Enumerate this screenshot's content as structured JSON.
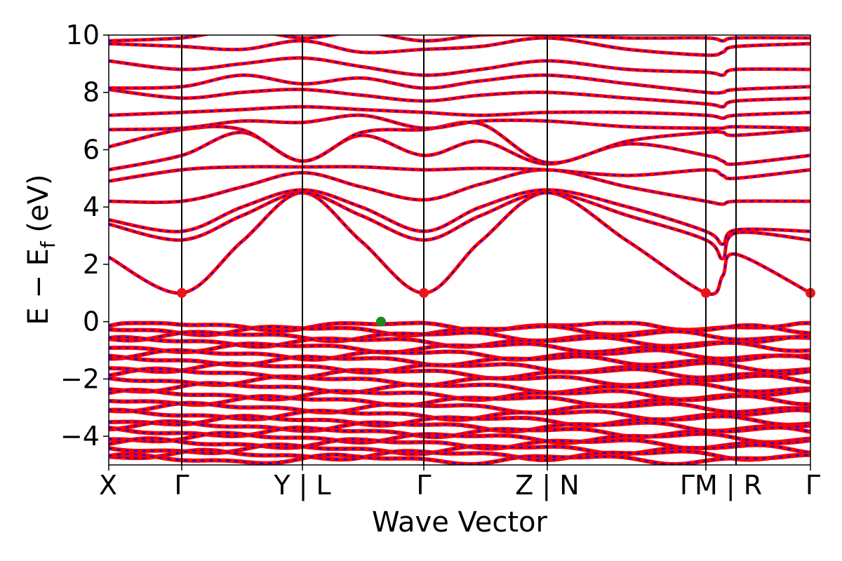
{
  "chart_data": {
    "type": "line",
    "title": "",
    "xlabel": "Wave Vector",
    "ylabel": {
      "main": "E − E",
      "sub": "f",
      "unit": " (eV)"
    },
    "ylim": [
      -5,
      10
    ],
    "y_ticks": [
      -4,
      -2,
      0,
      2,
      4,
      6,
      8,
      10
    ],
    "y_tick_labels": [
      "−4",
      "−2",
      "0",
      "2",
      "4",
      "6",
      "8",
      "10"
    ],
    "xlim": [
      0,
      1
    ],
    "k_points": [
      {
        "label": "X",
        "x": 0.0
      },
      {
        "label": "Γ",
        "x": 0.104
      },
      {
        "label": "Y | L",
        "x": 0.276
      },
      {
        "label": "Γ",
        "x": 0.449
      },
      {
        "label": "Z | N",
        "x": 0.625
      },
      {
        "label": "ΓM | R",
        "x": 0.851,
        "x2": 0.894
      },
      {
        "label": "Γ",
        "x": 1.0
      }
    ],
    "vlines": [
      0.104,
      0.276,
      0.449,
      0.625,
      0.851,
      0.894
    ],
    "grid": false,
    "legend": "none",
    "colors": {
      "band": "#ff0000",
      "band_overlay": "#0000ff",
      "cbm_marker": "#e8151b",
      "vbm_marker": "#1a8a1a",
      "kline": "#000000"
    },
    "cbm_points": [
      {
        "x": 0.104,
        "y": 1.0
      },
      {
        "x": 0.449,
        "y": 1.0
      },
      {
        "x": 0.851,
        "y": 1.0
      },
      {
        "x": 1.0,
        "y": 1.0
      }
    ],
    "vbm_points": [
      {
        "x": 0.388,
        "y": 0.0
      }
    ],
    "conduction_bands": [
      {
        "name": "",
        "x": [
          0,
          0.104,
          0.19,
          0.276,
          0.36,
          0.449,
          0.53,
          0.625,
          0.74,
          0.851,
          0.875,
          0.894,
          1.0
        ],
        "y": [
          2.25,
          1.0,
          2.8,
          4.5,
          2.8,
          1.0,
          2.8,
          4.5,
          2.8,
          1.0,
          1.6,
          2.35,
          1.0
        ]
      },
      {
        "name": "",
        "x": [
          0,
          0.104,
          0.19,
          0.276,
          0.36,
          0.449,
          0.53,
          0.625,
          0.74,
          0.851,
          0.875,
          0.894,
          1.0
        ],
        "y": [
          3.4,
          2.85,
          3.7,
          4.5,
          3.7,
          2.85,
          3.7,
          4.5,
          3.7,
          2.85,
          2.2,
          3.1,
          2.85
        ]
      },
      {
        "name": "",
        "x": [
          0,
          0.104,
          0.19,
          0.276,
          0.36,
          0.449,
          0.53,
          0.625,
          0.74,
          0.851,
          0.875,
          0.894,
          1.0
        ],
        "y": [
          3.55,
          3.15,
          4.0,
          4.6,
          4.0,
          3.15,
          4.0,
          4.6,
          4.0,
          3.15,
          2.7,
          3.2,
          3.15
        ]
      },
      {
        "name": "",
        "x": [
          0,
          0.104,
          0.19,
          0.276,
          0.36,
          0.449,
          0.53,
          0.625,
          0.74,
          0.851,
          0.875,
          0.894,
          1.0
        ],
        "y": [
          4.2,
          4.2,
          4.7,
          5.2,
          4.7,
          4.25,
          4.8,
          5.3,
          4.7,
          4.2,
          4.1,
          4.2,
          4.2
        ]
      },
      {
        "name": "",
        "x": [
          0,
          0.104,
          0.19,
          0.276,
          0.36,
          0.449,
          0.53,
          0.625,
          0.74,
          0.851,
          0.875,
          0.894,
          1.0
        ],
        "y": [
          4.9,
          5.3,
          5.4,
          5.4,
          5.4,
          5.3,
          5.35,
          5.3,
          5.1,
          5.3,
          5.1,
          5.0,
          5.3
        ]
      },
      {
        "name": "",
        "x": [
          0,
          0.104,
          0.19,
          0.276,
          0.36,
          0.449,
          0.53,
          0.625,
          0.74,
          0.851,
          0.875,
          0.894,
          1.0
        ],
        "y": [
          5.3,
          5.8,
          6.6,
          5.6,
          6.5,
          5.8,
          6.3,
          5.5,
          6.2,
          5.8,
          5.6,
          5.5,
          5.8
        ]
      },
      {
        "name": "",
        "x": [
          0,
          0.104,
          0.19,
          0.276,
          0.36,
          0.449,
          0.53,
          0.625,
          0.74,
          0.851,
          0.875,
          0.894,
          1.0
        ],
        "y": [
          6.1,
          6.7,
          6.7,
          5.6,
          6.6,
          6.7,
          6.9,
          5.55,
          6.3,
          6.6,
          6.6,
          6.5,
          6.7
        ]
      },
      {
        "name": "",
        "x": [
          0,
          0.104,
          0.19,
          0.276,
          0.36,
          0.449,
          0.53,
          0.625,
          0.74,
          0.851,
          0.875,
          0.894,
          1.0
        ],
        "y": [
          6.7,
          6.75,
          7.0,
          6.95,
          7.2,
          6.75,
          7.0,
          7.0,
          6.8,
          6.75,
          6.75,
          6.8,
          6.75
        ]
      },
      {
        "name": "",
        "x": [
          0,
          0.104,
          0.19,
          0.276,
          0.36,
          0.449,
          0.53,
          0.625,
          0.74,
          0.851,
          0.875,
          0.894,
          1.0
        ],
        "y": [
          7.2,
          7.3,
          7.4,
          7.5,
          7.4,
          7.3,
          7.2,
          7.3,
          7.3,
          7.2,
          7.1,
          7.2,
          7.3
        ]
      },
      {
        "name": "",
        "x": [
          0,
          0.104,
          0.19,
          0.276,
          0.36,
          0.449,
          0.53,
          0.625,
          0.74,
          0.851,
          0.875,
          0.894,
          1.0
        ],
        "y": [
          8.1,
          7.8,
          8.0,
          8.1,
          7.9,
          7.7,
          7.9,
          8.0,
          7.8,
          7.6,
          7.5,
          7.7,
          7.8
        ]
      },
      {
        "name": "",
        "x": [
          0,
          0.104,
          0.19,
          0.276,
          0.36,
          0.449,
          0.53,
          0.625,
          0.74,
          0.851,
          0.875,
          0.894,
          1.0
        ],
        "y": [
          8.15,
          8.2,
          8.6,
          8.3,
          8.5,
          8.15,
          8.4,
          8.6,
          8.3,
          8.0,
          8.0,
          8.1,
          8.2
        ]
      },
      {
        "name": "",
        "x": [
          0,
          0.104,
          0.19,
          0.276,
          0.36,
          0.449,
          0.53,
          0.625,
          0.74,
          0.851,
          0.875,
          0.894,
          1.0
        ],
        "y": [
          9.1,
          8.8,
          9.0,
          9.2,
          8.9,
          8.6,
          8.8,
          9.1,
          8.8,
          8.7,
          8.6,
          8.8,
          8.8
        ]
      },
      {
        "name": "",
        "x": [
          0,
          0.104,
          0.19,
          0.276,
          0.36,
          0.449,
          0.53,
          0.625,
          0.74,
          0.851,
          0.875,
          0.894,
          1.0
        ],
        "y": [
          9.7,
          9.6,
          9.5,
          9.8,
          9.4,
          9.5,
          9.6,
          9.9,
          9.5,
          9.3,
          9.4,
          9.6,
          9.7
        ]
      },
      {
        "name": "",
        "x": [
          0,
          0.104,
          0.19,
          0.276,
          0.36,
          0.449,
          0.53,
          0.625,
          0.74,
          0.851,
          0.875,
          0.894,
          1.0
        ],
        "y": [
          9.8,
          9.9,
          10.2,
          9.9,
          10.1,
          9.8,
          10.0,
          10.0,
          9.9,
          9.9,
          9.8,
          9.9,
          9.9
        ]
      }
    ],
    "valence_band_levels": [
      -0.15,
      -0.3,
      -0.5,
      -0.7,
      -0.9,
      -1.15,
      -1.35,
      -1.6,
      -1.8,
      -2.05,
      -2.3,
      -2.55,
      -2.75,
      -3.0,
      -3.25,
      -3.45,
      -3.65,
      -3.85,
      -4.05,
      -4.25,
      -4.45,
      -4.65,
      -4.8
    ]
  }
}
